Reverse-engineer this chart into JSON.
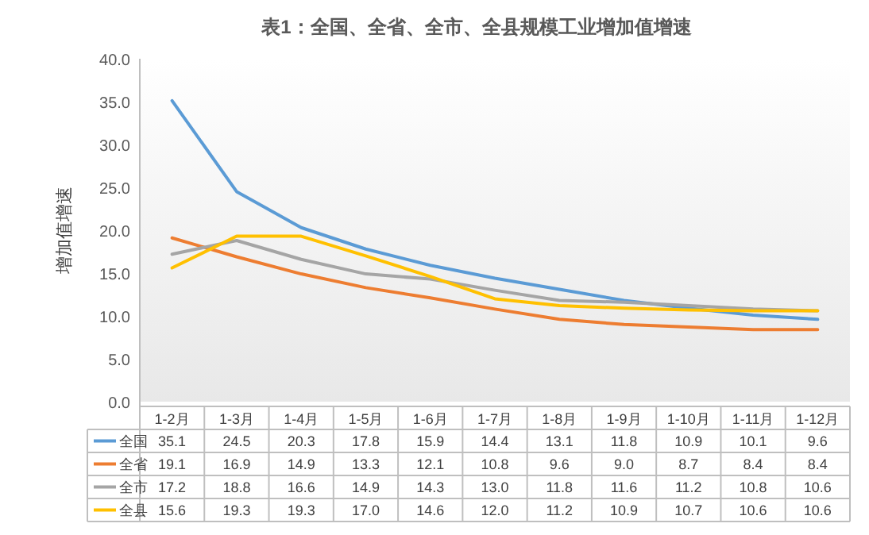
{
  "chart_data": {
    "type": "line",
    "title": "表1：全国、全省、全市、全县规模工业增加值增速",
    "ylabel": "增加值增速",
    "categories": [
      "1-2月",
      "1-3月",
      "1-4月",
      "1-5月",
      "1-6月",
      "1-7月",
      "1-8月",
      "1-9月",
      "1-10月",
      "1-11月",
      "1-12月"
    ],
    "series": [
      {
        "name": "全国",
        "color": "#5b9bd5",
        "values": [
          35.1,
          24.5,
          20.3,
          17.8,
          15.9,
          14.4,
          13.1,
          11.8,
          10.9,
          10.1,
          9.6
        ],
        "value_labels": [
          "35.1",
          "24.5",
          "20.3",
          "17.8",
          "15.9",
          "14.4",
          "13.1",
          "11.8",
          "10.9",
          "10.1",
          "9.6"
        ]
      },
      {
        "name": "全省",
        "color": "#ed7d31",
        "values": [
          19.1,
          16.9,
          14.9,
          13.3,
          12.1,
          10.8,
          9.6,
          9.0,
          8.7,
          8.4,
          8.4
        ],
        "value_labels": [
          "19.1",
          "16.9",
          "14.9",
          "13.3",
          "12.1",
          "10.8",
          "9.6",
          "9.0",
          "8.7",
          "8.4",
          "8.4"
        ]
      },
      {
        "name": "全市",
        "color": "#a5a5a5",
        "values": [
          17.2,
          18.8,
          16.6,
          14.9,
          14.3,
          13.0,
          11.8,
          11.6,
          11.2,
          10.8,
          10.6
        ],
        "value_labels": [
          "17.2",
          "18.8",
          "16.6",
          "14.9",
          "14.3",
          "13.0",
          "11.8",
          "11.6",
          "11.2",
          "10.8",
          "10.6"
        ]
      },
      {
        "name": "全县",
        "color": "#ffc000",
        "values": [
          15.6,
          19.3,
          19.3,
          17.0,
          14.6,
          12.0,
          11.2,
          10.9,
          10.7,
          10.6,
          10.6
        ],
        "value_labels": [
          "15.6",
          "19.3",
          "19.3",
          "17.0",
          "14.6",
          "12.0",
          "11.2",
          "10.9",
          "10.7",
          "10.6",
          "10.6"
        ]
      }
    ],
    "ylim": [
      0,
      40
    ],
    "yticks": [
      {
        "value": 0,
        "label": "0.0"
      },
      {
        "value": 5,
        "label": "5.0"
      },
      {
        "value": 10,
        "label": "10.0"
      },
      {
        "value": 15,
        "label": "15.0"
      },
      {
        "value": 20,
        "label": "20.0"
      },
      {
        "value": 25,
        "label": "25.0"
      },
      {
        "value": 30,
        "label": "30.0"
      },
      {
        "value": 35,
        "label": "35.0"
      },
      {
        "value": 40,
        "label": "40.0"
      }
    ],
    "legend": "bottom",
    "marker": "none",
    "line_style": "solid"
  }
}
